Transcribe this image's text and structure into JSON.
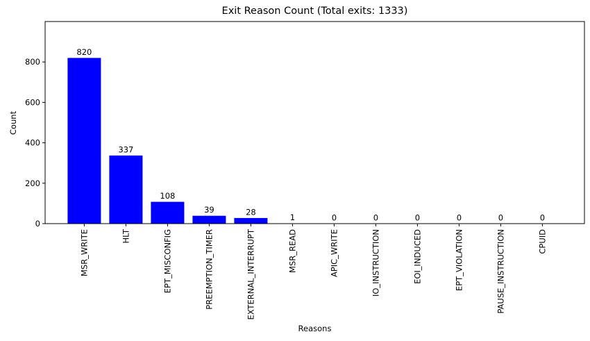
{
  "figure": {
    "background": "#ffffff",
    "bar_color": "#0000ff",
    "axis_color": "#000000",
    "text_color": "#000000"
  },
  "chart_data": {
    "type": "bar",
    "title": "Exit Reason Count (Total exits: 1333)",
    "xlabel": "Reasons",
    "ylabel": "Count",
    "total_exits": 1333,
    "categories": [
      "MSR_WRITE",
      "HLT",
      "EPT_MISCONFIG",
      "PREEMPTION_TIMER",
      "EXTERNAL_INTERRUPT",
      "MSR_READ",
      "APIC_WRITE",
      "IO_INSTRUCTION",
      "EOI_INDUCED",
      "EPT_VIOLATION",
      "PAUSE_INSTRUCTION",
      "CPUID"
    ],
    "values": [
      820,
      337,
      108,
      39,
      28,
      1,
      0,
      0,
      0,
      0,
      0,
      0
    ],
    "bar_labels": [
      "820",
      "337",
      "108",
      "39",
      "28",
      "1",
      "0",
      "0",
      "0",
      "0",
      "0",
      "0"
    ],
    "yticks": [
      0,
      200,
      400,
      600,
      800
    ],
    "ylim": [
      0,
      1000
    ],
    "xtick_rotation": 90,
    "grid": false,
    "legend": "none"
  }
}
